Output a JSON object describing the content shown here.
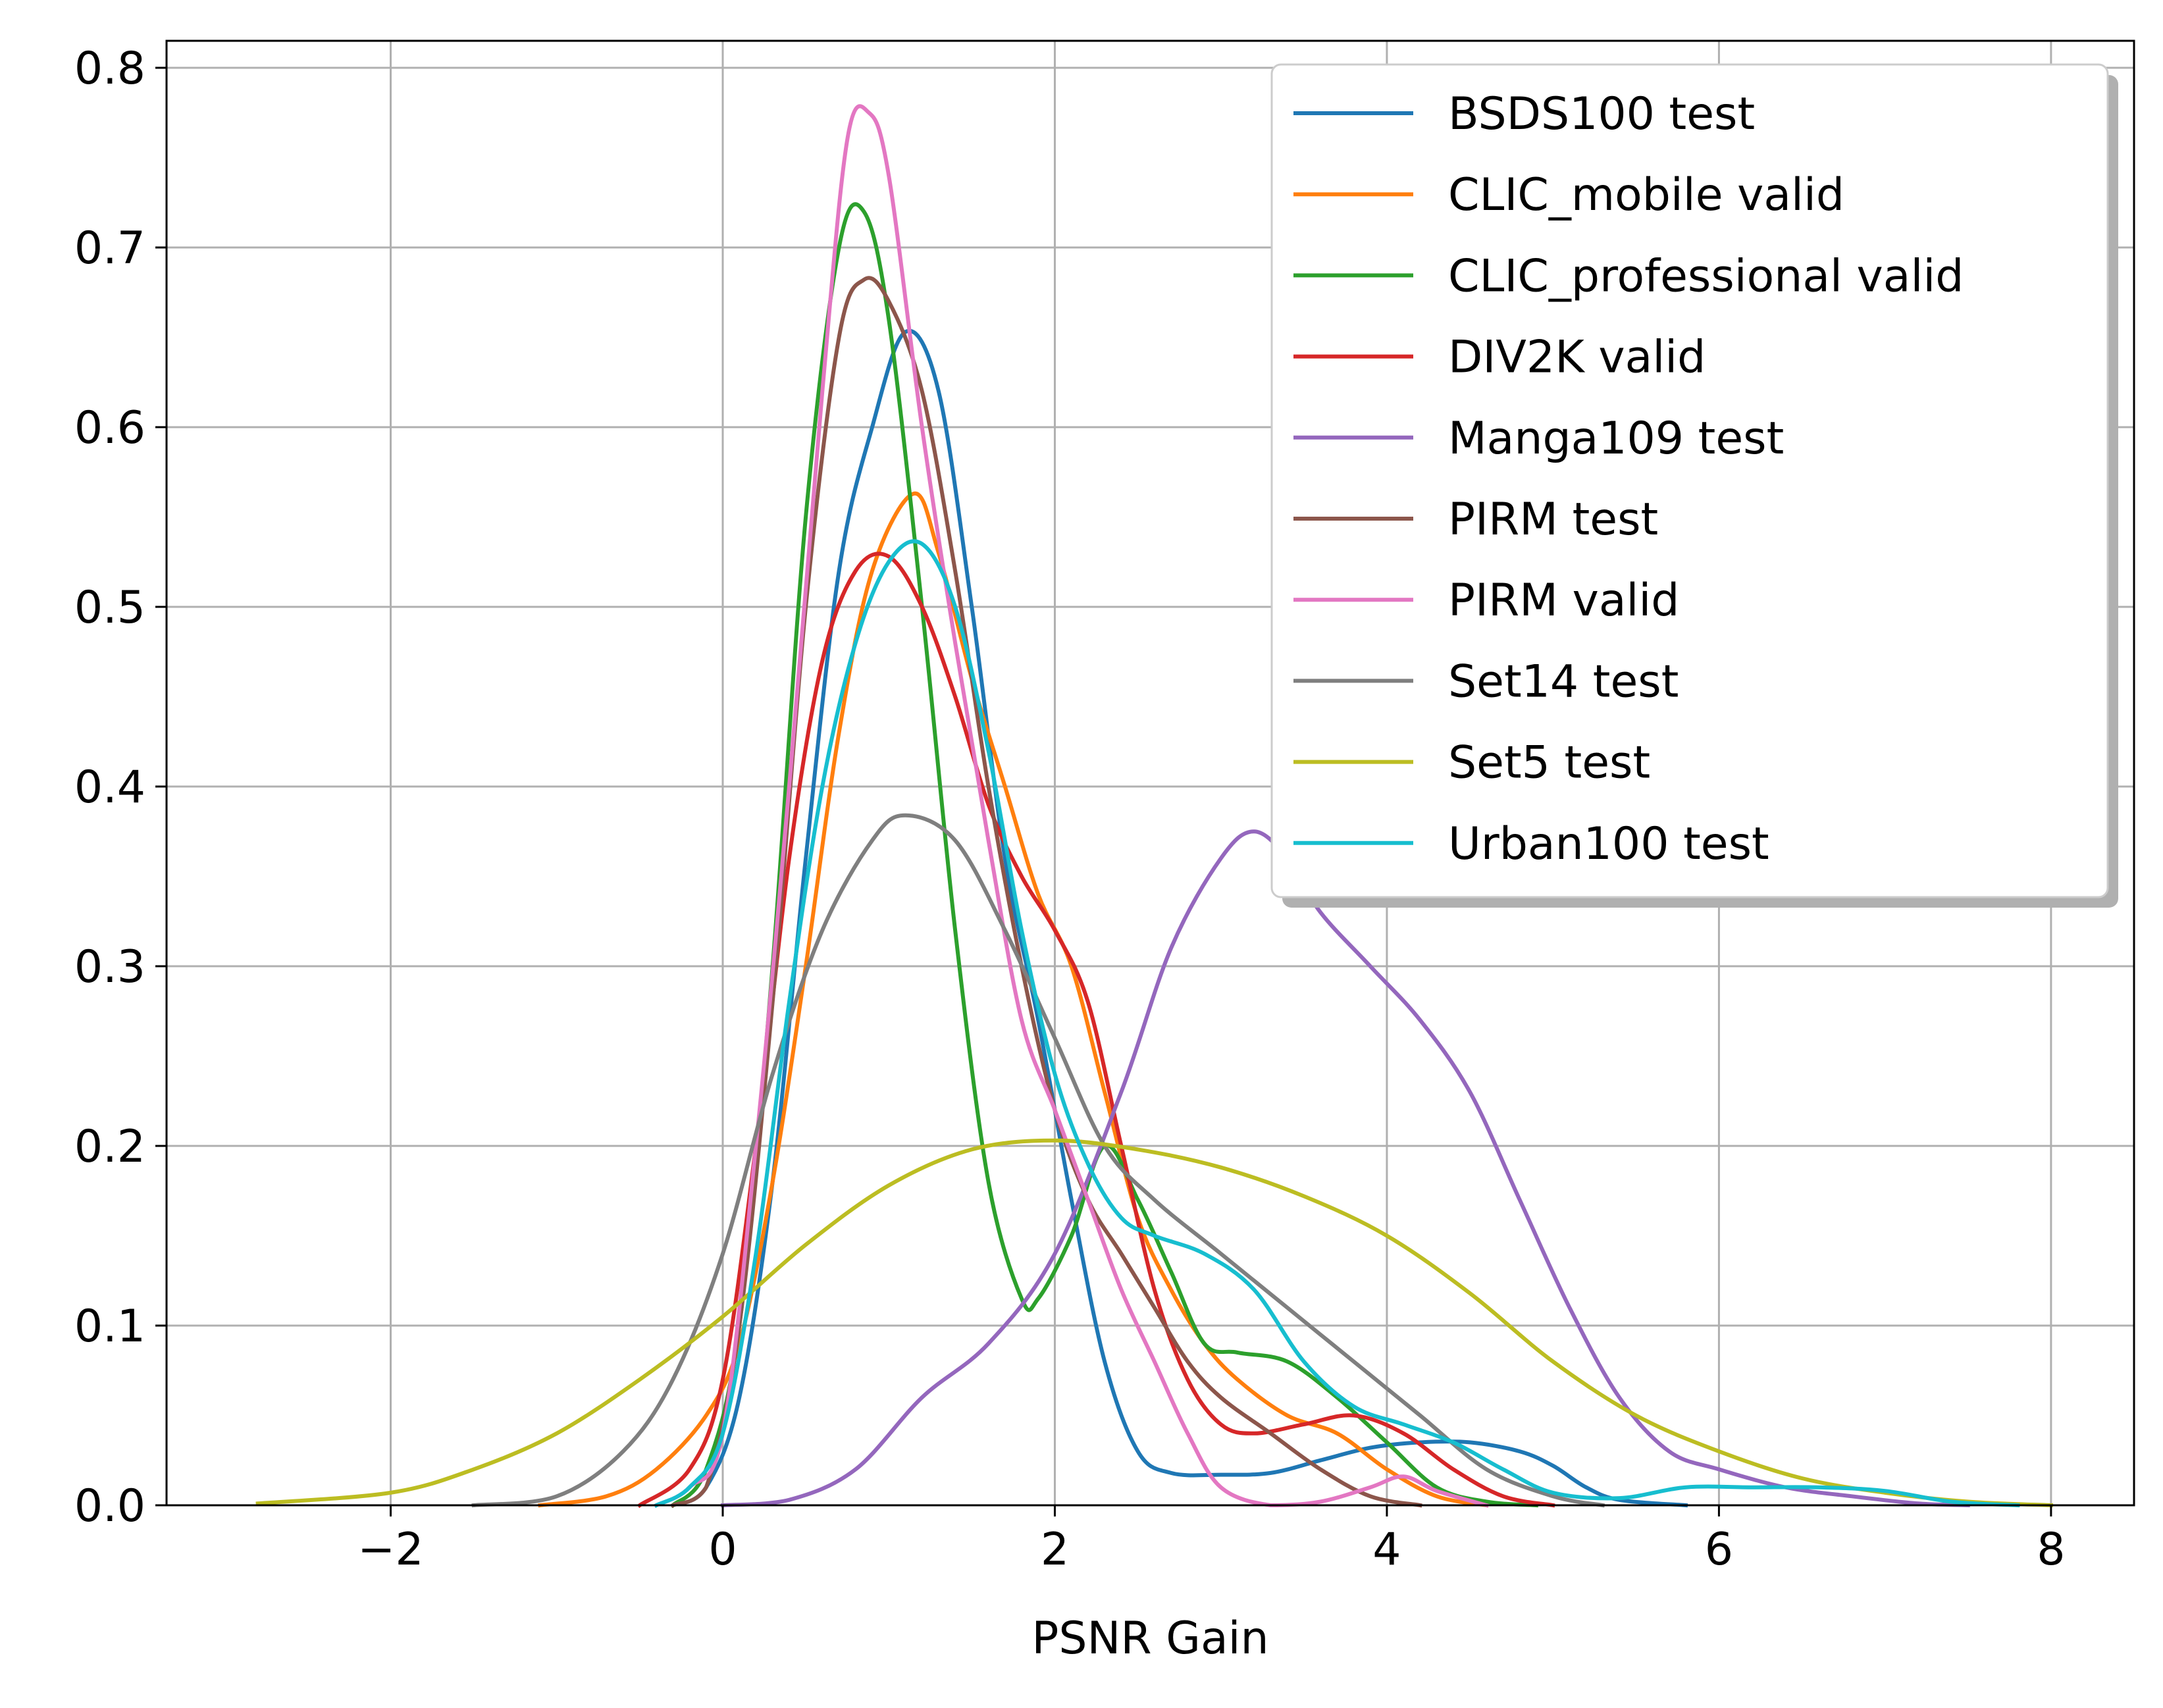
{
  "chart_data": {
    "type": "line",
    "title": "",
    "xlabel": "PSNR Gain",
    "ylabel": "",
    "xlim": [
      -3.35,
      8.5
    ],
    "ylim": [
      0.0,
      0.815
    ],
    "xticks": [
      -2,
      0,
      2,
      4,
      6,
      8
    ],
    "xtick_labels": [
      "−2",
      "0",
      "2",
      "4",
      "6",
      "8"
    ],
    "yticks": [
      0.0,
      0.1,
      0.2,
      0.3,
      0.4,
      0.5,
      0.6,
      0.7,
      0.8
    ],
    "ytick_labels": [
      "0.0",
      "0.1",
      "0.2",
      "0.3",
      "0.4",
      "0.5",
      "0.6",
      "0.7",
      "0.8"
    ],
    "grid": true,
    "legend": {
      "position": "top-right",
      "shadow": true
    },
    "series": [
      {
        "name": "BSDS100 test",
        "color": "#1f77b4",
        "points": [
          [
            -0.3,
            0.0
          ],
          [
            -0.1,
            0.01
          ],
          [
            0.1,
            0.06
          ],
          [
            0.3,
            0.18
          ],
          [
            0.5,
            0.36
          ],
          [
            0.7,
            0.52
          ],
          [
            0.9,
            0.6
          ],
          [
            1.1,
            0.653
          ],
          [
            1.3,
            0.62
          ],
          [
            1.5,
            0.5
          ],
          [
            1.7,
            0.36
          ],
          [
            1.9,
            0.27
          ],
          [
            2.1,
            0.17
          ],
          [
            2.3,
            0.08
          ],
          [
            2.5,
            0.03
          ],
          [
            2.7,
            0.018
          ],
          [
            3.0,
            0.017
          ],
          [
            3.3,
            0.018
          ],
          [
            3.6,
            0.025
          ],
          [
            3.9,
            0.032
          ],
          [
            4.2,
            0.035
          ],
          [
            4.5,
            0.035
          ],
          [
            4.8,
            0.03
          ],
          [
            5.0,
            0.022
          ],
          [
            5.2,
            0.01
          ],
          [
            5.4,
            0.003
          ],
          [
            5.8,
            0.0
          ]
        ]
      },
      {
        "name": "CLIC_mobile valid",
        "color": "#ff7f0e",
        "points": [
          [
            -1.1,
            0.0
          ],
          [
            -0.7,
            0.005
          ],
          [
            -0.4,
            0.02
          ],
          [
            -0.1,
            0.05
          ],
          [
            0.1,
            0.09
          ],
          [
            0.3,
            0.18
          ],
          [
            0.5,
            0.3
          ],
          [
            0.7,
            0.43
          ],
          [
            0.9,
            0.52
          ],
          [
            1.15,
            0.563
          ],
          [
            1.3,
            0.53
          ],
          [
            1.5,
            0.46
          ],
          [
            1.7,
            0.4
          ],
          [
            1.9,
            0.34
          ],
          [
            2.1,
            0.3
          ],
          [
            2.3,
            0.23
          ],
          [
            2.5,
            0.16
          ],
          [
            2.7,
            0.12
          ],
          [
            2.9,
            0.09
          ],
          [
            3.1,
            0.07
          ],
          [
            3.4,
            0.05
          ],
          [
            3.7,
            0.04
          ],
          [
            4.0,
            0.02
          ],
          [
            4.3,
            0.005
          ],
          [
            4.6,
            0.0
          ]
        ]
      },
      {
        "name": "CLIC_professional valid",
        "color": "#2ca02c",
        "points": [
          [
            -0.3,
            0.0
          ],
          [
            -0.1,
            0.02
          ],
          [
            0.1,
            0.1
          ],
          [
            0.3,
            0.3
          ],
          [
            0.5,
            0.55
          ],
          [
            0.7,
            0.7
          ],
          [
            0.85,
            0.72
          ],
          [
            1.0,
            0.66
          ],
          [
            1.2,
            0.5
          ],
          [
            1.4,
            0.32
          ],
          [
            1.6,
            0.18
          ],
          [
            1.8,
            0.115
          ],
          [
            1.9,
            0.115
          ],
          [
            2.1,
            0.15
          ],
          [
            2.3,
            0.2
          ],
          [
            2.5,
            0.17
          ],
          [
            2.7,
            0.13
          ],
          [
            2.9,
            0.09
          ],
          [
            3.1,
            0.085
          ],
          [
            3.4,
            0.08
          ],
          [
            3.7,
            0.06
          ],
          [
            4.0,
            0.035
          ],
          [
            4.3,
            0.01
          ],
          [
            4.6,
            0.002
          ],
          [
            4.9,
            0.0
          ]
        ]
      },
      {
        "name": "DIV2K valid",
        "color": "#d62728",
        "points": [
          [
            -0.5,
            0.0
          ],
          [
            -0.2,
            0.02
          ],
          [
            0.0,
            0.07
          ],
          [
            0.2,
            0.2
          ],
          [
            0.4,
            0.36
          ],
          [
            0.6,
            0.47
          ],
          [
            0.8,
            0.52
          ],
          [
            1.0,
            0.528
          ],
          [
            1.2,
            0.5
          ],
          [
            1.4,
            0.45
          ],
          [
            1.6,
            0.39
          ],
          [
            1.8,
            0.35
          ],
          [
            2.0,
            0.32
          ],
          [
            2.2,
            0.28
          ],
          [
            2.4,
            0.2
          ],
          [
            2.6,
            0.12
          ],
          [
            2.8,
            0.07
          ],
          [
            3.0,
            0.045
          ],
          [
            3.2,
            0.04
          ],
          [
            3.5,
            0.045
          ],
          [
            3.8,
            0.05
          ],
          [
            4.1,
            0.04
          ],
          [
            4.4,
            0.02
          ],
          [
            4.7,
            0.005
          ],
          [
            5.0,
            0.0
          ]
        ]
      },
      {
        "name": "Manga109 test",
        "color": "#9467bd",
        "points": [
          [
            0.0,
            0.0
          ],
          [
            0.4,
            0.003
          ],
          [
            0.8,
            0.02
          ],
          [
            1.2,
            0.06
          ],
          [
            1.6,
            0.09
          ],
          [
            2.0,
            0.14
          ],
          [
            2.4,
            0.23
          ],
          [
            2.7,
            0.31
          ],
          [
            3.0,
            0.36
          ],
          [
            3.2,
            0.375
          ],
          [
            3.4,
            0.36
          ],
          [
            3.6,
            0.33
          ],
          [
            3.9,
            0.3
          ],
          [
            4.2,
            0.27
          ],
          [
            4.5,
            0.23
          ],
          [
            4.8,
            0.17
          ],
          [
            5.1,
            0.11
          ],
          [
            5.4,
            0.06
          ],
          [
            5.7,
            0.03
          ],
          [
            6.0,
            0.02
          ],
          [
            6.4,
            0.01
          ],
          [
            6.8,
            0.005
          ],
          [
            7.2,
            0.001
          ],
          [
            7.5,
            0.0
          ]
        ]
      },
      {
        "name": "PIRM test",
        "color": "#8c564b",
        "points": [
          [
            -0.3,
            0.0
          ],
          [
            -0.1,
            0.01
          ],
          [
            0.1,
            0.1
          ],
          [
            0.3,
            0.28
          ],
          [
            0.5,
            0.5
          ],
          [
            0.7,
            0.65
          ],
          [
            0.85,
            0.682
          ],
          [
            1.0,
            0.67
          ],
          [
            1.2,
            0.62
          ],
          [
            1.4,
            0.52
          ],
          [
            1.6,
            0.4
          ],
          [
            1.8,
            0.3
          ],
          [
            2.0,
            0.22
          ],
          [
            2.2,
            0.17
          ],
          [
            2.4,
            0.14
          ],
          [
            2.6,
            0.11
          ],
          [
            2.8,
            0.08
          ],
          [
            3.0,
            0.06
          ],
          [
            3.3,
            0.04
          ],
          [
            3.6,
            0.02
          ],
          [
            3.9,
            0.005
          ],
          [
            4.2,
            0.0
          ]
        ]
      },
      {
        "name": "PIRM valid",
        "color": "#e377c2",
        "points": [
          [
            -0.4,
            0.0
          ],
          [
            -0.2,
            0.01
          ],
          [
            0.0,
            0.04
          ],
          [
            0.2,
            0.2
          ],
          [
            0.4,
            0.4
          ],
          [
            0.6,
            0.62
          ],
          [
            0.75,
            0.76
          ],
          [
            0.88,
            0.775
          ],
          [
            1.0,
            0.74
          ],
          [
            1.2,
            0.6
          ],
          [
            1.4,
            0.48
          ],
          [
            1.6,
            0.37
          ],
          [
            1.8,
            0.27
          ],
          [
            2.0,
            0.22
          ],
          [
            2.2,
            0.17
          ],
          [
            2.4,
            0.12
          ],
          [
            2.6,
            0.08
          ],
          [
            2.8,
            0.04
          ],
          [
            3.0,
            0.01
          ],
          [
            3.3,
            0.0
          ],
          [
            3.6,
            0.002
          ],
          [
            3.9,
            0.01
          ],
          [
            4.1,
            0.016
          ],
          [
            4.3,
            0.008
          ],
          [
            4.6,
            0.0
          ]
        ]
      },
      {
        "name": "Set14 test",
        "color": "#7f7f7f",
        "points": [
          [
            -1.5,
            0.0
          ],
          [
            -1.0,
            0.005
          ],
          [
            -0.6,
            0.03
          ],
          [
            -0.3,
            0.07
          ],
          [
            0.0,
            0.14
          ],
          [
            0.3,
            0.24
          ],
          [
            0.6,
            0.32
          ],
          [
            0.9,
            0.37
          ],
          [
            1.1,
            0.384
          ],
          [
            1.4,
            0.37
          ],
          [
            1.7,
            0.32
          ],
          [
            2.0,
            0.26
          ],
          [
            2.3,
            0.2
          ],
          [
            2.6,
            0.17
          ],
          [
            3.0,
            0.14
          ],
          [
            3.4,
            0.11
          ],
          [
            3.8,
            0.08
          ],
          [
            4.2,
            0.05
          ],
          [
            4.6,
            0.02
          ],
          [
            5.0,
            0.005
          ],
          [
            5.3,
            0.0
          ]
        ]
      },
      {
        "name": "Set5 test",
        "color": "#bcbd22",
        "points": [
          [
            -2.8,
            0.001
          ],
          [
            -2.0,
            0.007
          ],
          [
            -1.5,
            0.02
          ],
          [
            -1.0,
            0.04
          ],
          [
            -0.5,
            0.07
          ],
          [
            0.0,
            0.105
          ],
          [
            0.5,
            0.145
          ],
          [
            1.0,
            0.178
          ],
          [
            1.5,
            0.198
          ],
          [
            2.0,
            0.203
          ],
          [
            2.5,
            0.198
          ],
          [
            3.0,
            0.188
          ],
          [
            3.5,
            0.172
          ],
          [
            4.0,
            0.15
          ],
          [
            4.5,
            0.118
          ],
          [
            5.0,
            0.08
          ],
          [
            5.5,
            0.05
          ],
          [
            6.0,
            0.03
          ],
          [
            6.5,
            0.015
          ],
          [
            7.0,
            0.007
          ],
          [
            7.5,
            0.002
          ],
          [
            8.0,
            0.0
          ]
        ]
      },
      {
        "name": "Urban100 test",
        "color": "#17becf",
        "points": [
          [
            -0.4,
            0.0
          ],
          [
            -0.2,
            0.01
          ],
          [
            0.0,
            0.04
          ],
          [
            0.2,
            0.14
          ],
          [
            0.4,
            0.28
          ],
          [
            0.6,
            0.4
          ],
          [
            0.8,
            0.48
          ],
          [
            1.0,
            0.525
          ],
          [
            1.2,
            0.535
          ],
          [
            1.4,
            0.5
          ],
          [
            1.6,
            0.42
          ],
          [
            1.8,
            0.32
          ],
          [
            2.0,
            0.24
          ],
          [
            2.2,
            0.19
          ],
          [
            2.4,
            0.16
          ],
          [
            2.6,
            0.15
          ],
          [
            2.9,
            0.14
          ],
          [
            3.2,
            0.12
          ],
          [
            3.5,
            0.08
          ],
          [
            3.8,
            0.055
          ],
          [
            4.1,
            0.045
          ],
          [
            4.4,
            0.035
          ],
          [
            4.7,
            0.02
          ],
          [
            5.0,
            0.007
          ],
          [
            5.4,
            0.004
          ],
          [
            5.8,
            0.01
          ],
          [
            6.2,
            0.01
          ],
          [
            6.6,
            0.01
          ],
          [
            7.0,
            0.008
          ],
          [
            7.4,
            0.002
          ],
          [
            7.8,
            0.0
          ]
        ]
      }
    ]
  }
}
